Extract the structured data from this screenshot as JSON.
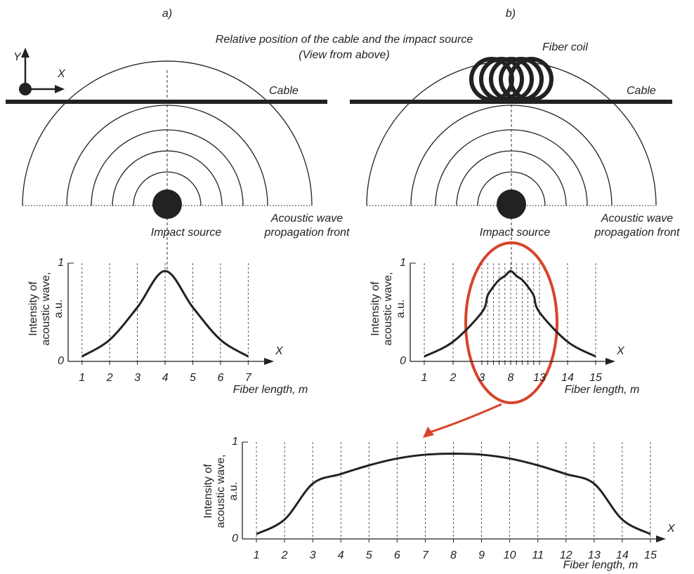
{
  "panels": {
    "a": "a)",
    "b": "b)"
  },
  "title": [
    "Relative position of the cable and the impact source",
    "(View from above)"
  ],
  "axes_icon": {
    "y": "Y",
    "x": "X"
  },
  "left": {
    "cable": "Cable",
    "source": "Impact source",
    "front": [
      "Acoustic wave",
      "propagation front"
    ]
  },
  "right": {
    "coil": "Fiber coil",
    "cable": "Cable",
    "source": "Impact source",
    "front": [
      "Acoustic wave",
      "propagation front"
    ]
  },
  "chart_data": [
    {
      "type": "line",
      "x": [
        1,
        2,
        3,
        4,
        5,
        6,
        7
      ],
      "xlim": [
        0.5,
        7.6
      ],
      "xticks": [
        1,
        2,
        3,
        4,
        5,
        6,
        7
      ],
      "ylim": [
        0,
        1
      ],
      "yticks": [
        0,
        1
      ],
      "xlabel": "Fiber length, m",
      "ylabel": [
        "Intensity of",
        "acoustic wave,",
        "a.u."
      ],
      "axis_name": "X",
      "grid": true,
      "color": "#222222",
      "series": [
        {
          "values": [
            0.05,
            0.22,
            0.55,
            0.92,
            0.55,
            0.22,
            0.05
          ]
        }
      ]
    },
    {
      "type": "line",
      "categories": [
        "1",
        "2",
        "3",
        null,
        null,
        null,
        null,
        "8",
        null,
        null,
        null,
        null,
        "13",
        "14",
        "15"
      ],
      "ylim": [
        0,
        1
      ],
      "yticks": [
        0,
        1
      ],
      "xlabel": "Fiber length, m",
      "ylabel": [
        "Intensity of",
        "acoustic wave,",
        "a.u."
      ],
      "axis_name": "X",
      "grid": true,
      "color": "#222222",
      "series": [
        {
          "values": [
            0.05,
            0.2,
            0.5,
            0.67,
            0.76,
            0.83,
            0.87,
            0.92,
            0.87,
            0.83,
            0.76,
            0.67,
            0.5,
            0.2,
            0.05
          ]
        }
      ]
    },
    {
      "type": "line",
      "x": [
        1,
        2,
        3,
        4,
        5,
        6,
        7,
        8,
        9,
        10,
        11,
        12,
        13,
        14,
        15
      ],
      "xlim": [
        0.5,
        15.6
      ],
      "xticks": [
        1,
        2,
        3,
        4,
        5,
        6,
        7,
        8,
        9,
        10,
        11,
        12,
        13,
        14,
        15
      ],
      "ylim": [
        0,
        1
      ],
      "yticks": [
        0,
        1
      ],
      "xlabel": "Fiber length, m",
      "ylabel": [
        "Intensity of",
        "acoustic wave,",
        "a.u."
      ],
      "axis_name": "X",
      "grid": true,
      "color": "#222222",
      "series": [
        {
          "values": [
            0.05,
            0.2,
            0.57,
            0.67,
            0.76,
            0.83,
            0.87,
            0.88,
            0.87,
            0.83,
            0.76,
            0.67,
            0.57,
            0.2,
            0.05
          ]
        }
      ]
    }
  ]
}
